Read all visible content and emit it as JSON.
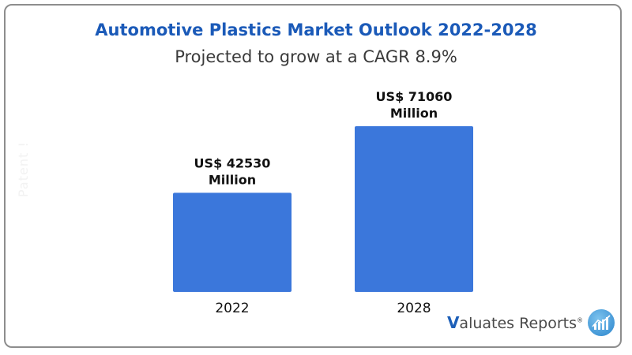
{
  "title": "Automotive Plastics Market Outlook 2022-2028",
  "subtitle": "Projected to grow at a CAGR 8.9%",
  "watermark": "Patent !",
  "logo": {
    "initial": "V",
    "text": "aluates Reports",
    "reg": "®",
    "badge_icon": "chart-growth-icon"
  },
  "colors": {
    "bar": "#3b77db",
    "title": "#1b5ab8",
    "label": "#111111"
  },
  "chart_data": {
    "type": "bar",
    "categories": [
      "2022",
      "2028"
    ],
    "values": [
      42530,
      71060
    ],
    "value_labels": [
      [
        "US$ 42530",
        "Million"
      ],
      [
        "US$ 71060",
        "Million"
      ]
    ],
    "title": "Automotive Plastics Market Outlook 2022-2028",
    "xlabel": "",
    "ylabel": "",
    "ylim": [
      0,
      71060
    ],
    "grid": false,
    "legend": "none"
  }
}
